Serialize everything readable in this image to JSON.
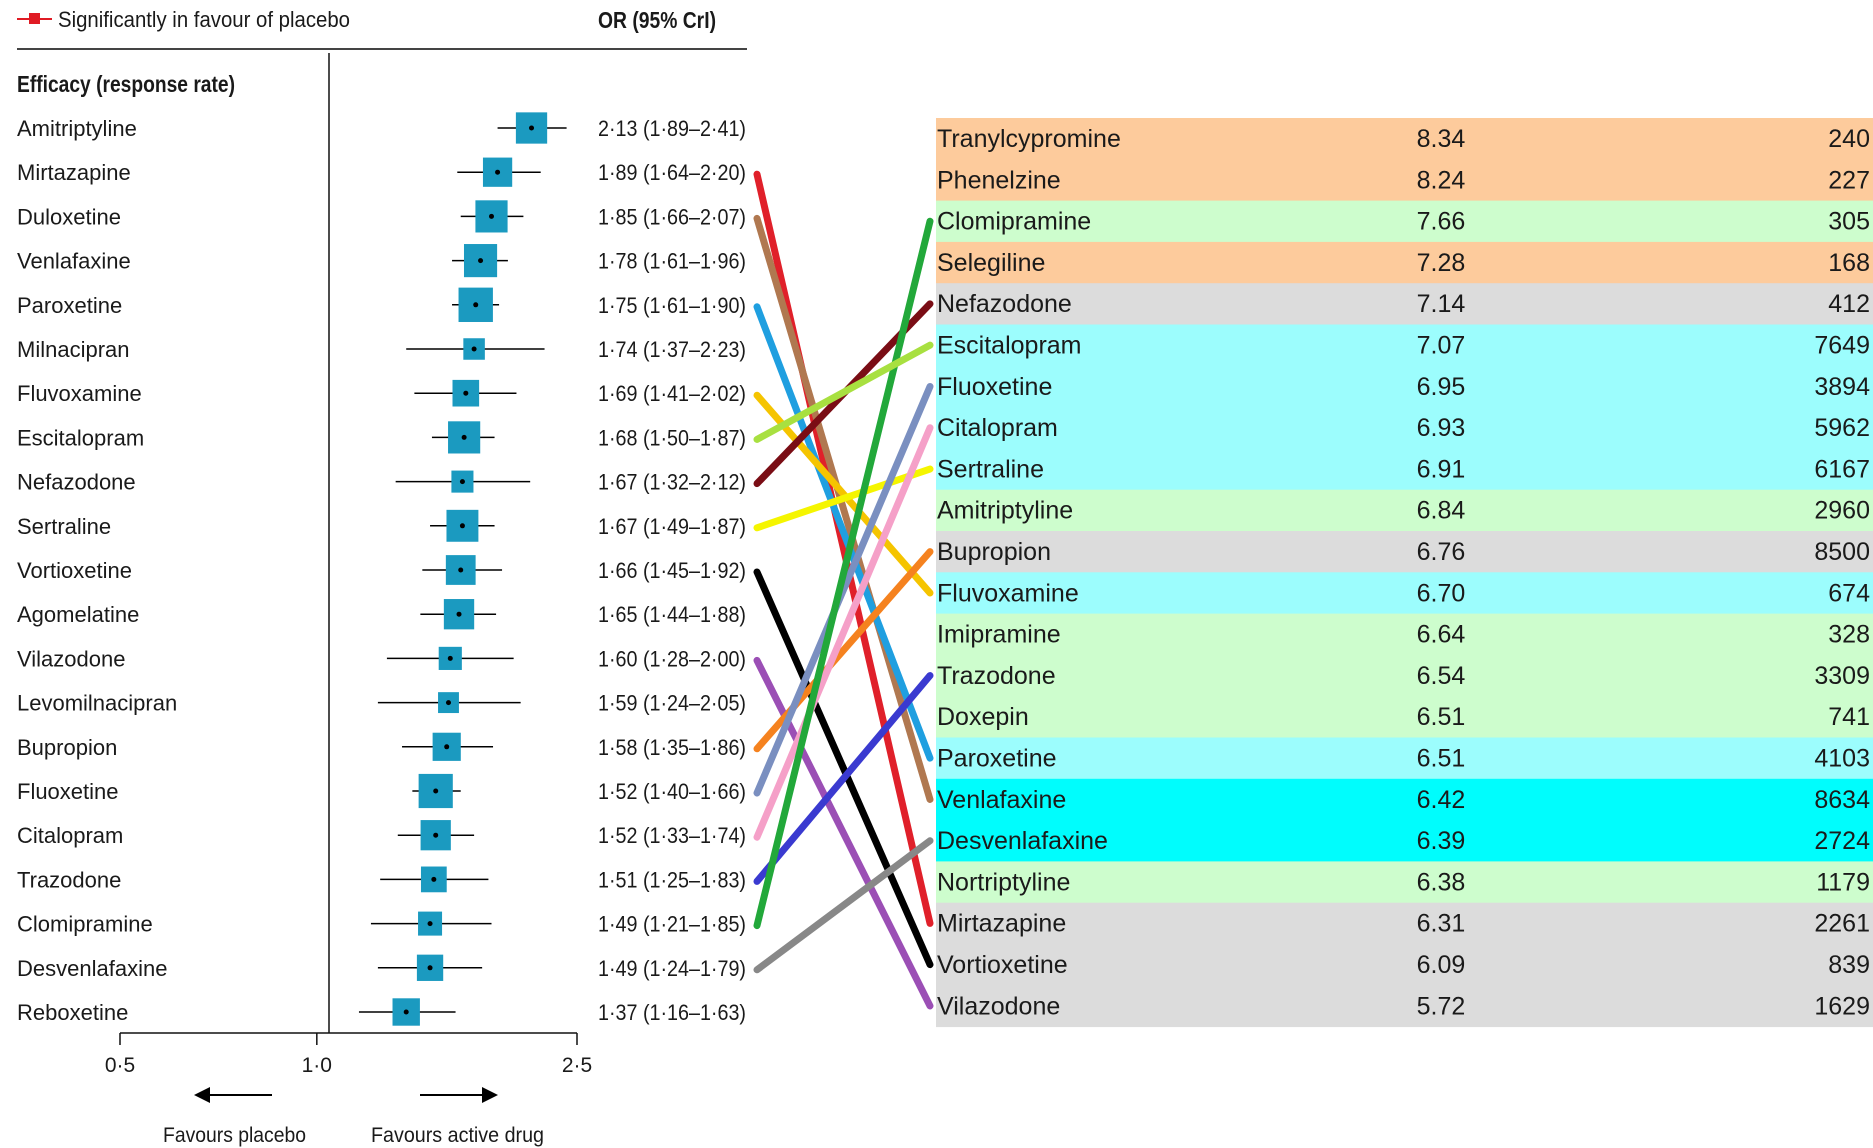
{
  "forest": {
    "legend_label": "Significantly in favour of placebo",
    "or_header": "OR (95% CrI)",
    "section_title": "Efficacy (response rate)",
    "axis_ticks": [
      "0·5",
      "1·0",
      "2·5"
    ],
    "favours_left": "Favours placebo",
    "favours_right": "Favours active drug",
    "colors": {
      "square": "#1b9ac0",
      "line": "#000000",
      "legend": "#e01b24"
    }
  },
  "chart_data": [
    {
      "type": "forest",
      "title": "Efficacy (response rate)",
      "xlabel": "",
      "x_scale": "log",
      "xlim": [
        0.5,
        2.5
      ],
      "reference": 1.0,
      "rows": [
        {
          "drug": "Amitriptyline",
          "or": 2.13,
          "low": 1.89,
          "high": 2.41,
          "ci_text": "2·13 (1·89–2·41)"
        },
        {
          "drug": "Mirtazapine",
          "or": 1.89,
          "low": 1.64,
          "high": 2.2,
          "ci_text": "1·89 (1·64–2·20)"
        },
        {
          "drug": "Duloxetine",
          "or": 1.85,
          "low": 1.66,
          "high": 2.07,
          "ci_text": "1·85 (1·66–2·07)"
        },
        {
          "drug": "Venlafaxine",
          "or": 1.78,
          "low": 1.61,
          "high": 1.96,
          "ci_text": "1·78 (1·61–1·96)"
        },
        {
          "drug": "Paroxetine",
          "or": 1.75,
          "low": 1.61,
          "high": 1.9,
          "ci_text": "1·75 (1·61–1·90)"
        },
        {
          "drug": "Milnacipran",
          "or": 1.74,
          "low": 1.37,
          "high": 2.23,
          "ci_text": "1·74 (1·37–2·23)"
        },
        {
          "drug": "Fluvoxamine",
          "or": 1.69,
          "low": 1.41,
          "high": 2.02,
          "ci_text": "1·69 (1·41–2·02)"
        },
        {
          "drug": "Escitalopram",
          "or": 1.68,
          "low": 1.5,
          "high": 1.87,
          "ci_text": "1·68 (1·50–1·87)"
        },
        {
          "drug": "Nefazodone",
          "or": 1.67,
          "low": 1.32,
          "high": 2.12,
          "ci_text": "1·67 (1·32–2·12)"
        },
        {
          "drug": "Sertraline",
          "or": 1.67,
          "low": 1.49,
          "high": 1.87,
          "ci_text": "1·67 (1·49–1·87)"
        },
        {
          "drug": "Vortioxetine",
          "or": 1.66,
          "low": 1.45,
          "high": 1.92,
          "ci_text": "1·66 (1·45–1·92)"
        },
        {
          "drug": "Agomelatine",
          "or": 1.65,
          "low": 1.44,
          "high": 1.88,
          "ci_text": "1·65 (1·44–1·88)"
        },
        {
          "drug": "Vilazodone",
          "or": 1.6,
          "low": 1.28,
          "high": 2.0,
          "ci_text": "1·60 (1·28–2·00)"
        },
        {
          "drug": "Levomilnacipran",
          "or": 1.59,
          "low": 1.24,
          "high": 2.05,
          "ci_text": "1·59 (1·24–2·05)"
        },
        {
          "drug": "Bupropion",
          "or": 1.58,
          "low": 1.35,
          "high": 1.86,
          "ci_text": "1·58 (1·35–1·86)"
        },
        {
          "drug": "Fluoxetine",
          "or": 1.52,
          "low": 1.4,
          "high": 1.66,
          "ci_text": "1·52 (1·40–1·66)"
        },
        {
          "drug": "Citalopram",
          "or": 1.52,
          "low": 1.33,
          "high": 1.74,
          "ci_text": "1·52 (1·33–1·74)"
        },
        {
          "drug": "Trazodone",
          "or": 1.51,
          "low": 1.25,
          "high": 1.83,
          "ci_text": "1·51 (1·25–1·83)"
        },
        {
          "drug": "Clomipramine",
          "or": 1.49,
          "low": 1.21,
          "high": 1.85,
          "ci_text": "1·49 (1·21–1·85)"
        },
        {
          "drug": "Desvenlafaxine",
          "or": 1.49,
          "low": 1.24,
          "high": 1.79,
          "ci_text": "1·49 (1·24–1·79)"
        },
        {
          "drug": "Reboxetine",
          "or": 1.37,
          "low": 1.16,
          "high": 1.63,
          "ci_text": "1·37 (1·16–1·63)"
        }
      ]
    },
    {
      "type": "table",
      "columns": [
        "",
        "",
        ""
      ],
      "rows": [
        {
          "drug": "Tranylcypromine",
          "score": "8.34",
          "count": "240",
          "color": "#fdcb9c"
        },
        {
          "drug": "Phenelzine",
          "score": "8.24",
          "count": "227",
          "color": "#fdcb9c"
        },
        {
          "drug": "Clomipramine",
          "score": "7.66",
          "count": "305",
          "color": "#cdfdcd"
        },
        {
          "drug": "Selegiline",
          "score": "7.28",
          "count": "168",
          "color": "#fdcb9c"
        },
        {
          "drug": "Nefazodone",
          "score": "7.14",
          "count": "412",
          "color": "#dcdcdc"
        },
        {
          "drug": "Escitalopram",
          "score": "7.07",
          "count": "7649",
          "color": "#9cfdfd"
        },
        {
          "drug": "Fluoxetine",
          "score": "6.95",
          "count": "3894",
          "color": "#9cfdfd"
        },
        {
          "drug": "Citalopram",
          "score": "6.93",
          "count": "5962",
          "color": "#9cfdfd"
        },
        {
          "drug": "Sertraline",
          "score": "6.91",
          "count": "6167",
          "color": "#9cfdfd"
        },
        {
          "drug": "Amitriptyline",
          "score": "6.84",
          "count": "2960",
          "color": "#cdfdcd"
        },
        {
          "drug": "Bupropion",
          "score": "6.76",
          "count": "8500",
          "color": "#dcdcdc"
        },
        {
          "drug": "Fluvoxamine",
          "score": "6.70",
          "count": "674",
          "color": "#9cfdfd"
        },
        {
          "drug": "Imipramine",
          "score": "6.64",
          "count": "328",
          "color": "#cdfdcd"
        },
        {
          "drug": "Trazodone",
          "score": "6.54",
          "count": "3309",
          "color": "#cdfdcd"
        },
        {
          "drug": "Doxepin",
          "score": "6.51",
          "count": "741",
          "color": "#cdfdcd"
        },
        {
          "drug": "Paroxetine",
          "score": "6.51",
          "count": "4103",
          "color": "#9cfdfd"
        },
        {
          "drug": "Venlafaxine",
          "score": "6.42",
          "count": "8634",
          "color": "#00fdfd"
        },
        {
          "drug": "Desvenlafaxine",
          "score": "6.39",
          "count": "2724",
          "color": "#00fdfd"
        },
        {
          "drug": "Nortriptyline",
          "score": "6.38",
          "count": "1179",
          "color": "#cdfdcd"
        },
        {
          "drug": "Mirtazapine",
          "score": "6.31",
          "count": "2261",
          "color": "#dcdcdc"
        },
        {
          "drug": "Vortioxetine",
          "score": "6.09",
          "count": "839",
          "color": "#dcdcdc"
        },
        {
          "drug": "Vilazodone",
          "score": "5.72",
          "count": "1629",
          "color": "#dcdcdc"
        }
      ]
    },
    {
      "type": "links",
      "links": [
        {
          "from": 1,
          "to": 19,
          "color": "#e0202a"
        },
        {
          "from": 2,
          "to": 16,
          "color": "#b07850"
        },
        {
          "from": 4,
          "to": 15,
          "color": "#1f9fe0"
        },
        {
          "from": 6,
          "to": 11,
          "color": "#f5c400"
        },
        {
          "from": 8,
          "to": 4,
          "color": "#7a0d15"
        },
        {
          "from": 9,
          "to": 8,
          "color": "#f5f500"
        },
        {
          "from": 10,
          "to": 20,
          "color": "#000000"
        },
        {
          "from": 12,
          "to": 21,
          "color": "#9b4fb5"
        },
        {
          "from": 14,
          "to": 10,
          "color": "#f5821f"
        },
        {
          "from": 15,
          "to": 6,
          "color": "#7a8fc0"
        },
        {
          "from": 16,
          "to": 7,
          "color": "#f5a0c8"
        },
        {
          "from": 17,
          "to": 13,
          "color": "#3a3ad0"
        },
        {
          "from": 18,
          "to": 2,
          "color": "#22a83a"
        },
        {
          "from": 19,
          "to": 17,
          "color": "#888888"
        },
        {
          "from": 7,
          "to": 5,
          "color": "#a8e040"
        }
      ]
    }
  ]
}
